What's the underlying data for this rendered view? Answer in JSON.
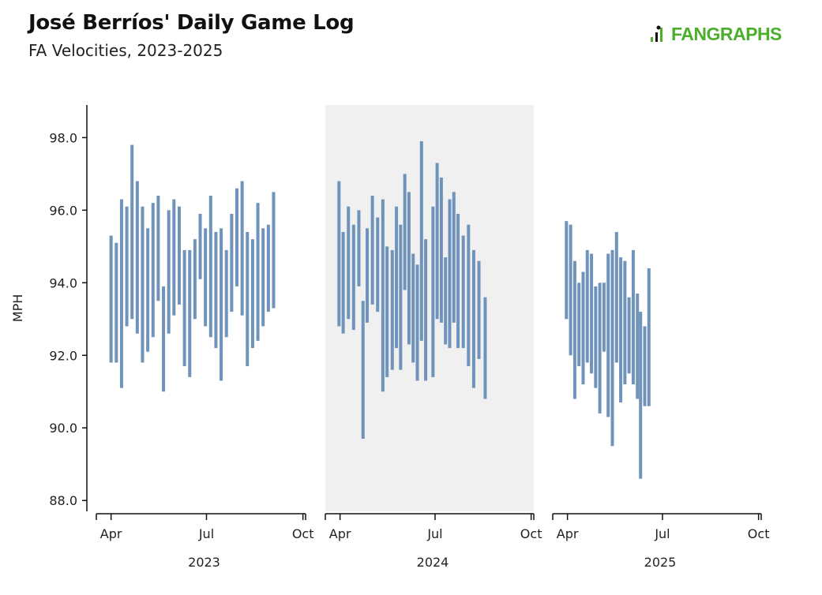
{
  "header": {
    "title": "José Berríos' Daily Game Log",
    "subtitle": "FA Velocities, 2023-2025",
    "logo_text": "FANGRAPHS"
  },
  "colors": {
    "bar": "#6f93ba",
    "shade": "#f0f0f0",
    "logo": "#4caf2a",
    "axis": "#111111"
  },
  "chart_data": {
    "type": "bar",
    "title": "José Berríos' Daily Game Log",
    "subtitle": "FA Velocities, 2023-2025",
    "ylabel": "MPH",
    "ylim": [
      87.7,
      98.9
    ],
    "yticks": [
      "88.0",
      "90.0",
      "92.0",
      "94.0",
      "96.0",
      "98.0"
    ],
    "ytick_values": [
      88,
      90,
      92,
      94,
      96,
      98
    ],
    "highlight_panel": "2024",
    "panels": [
      {
        "year": "2023",
        "month_labels": [
          "Apr",
          "Jul",
          "Oct"
        ],
        "bars": [
          {
            "day": 2,
            "min": 91.8,
            "max": 95.3
          },
          {
            "day": 7,
            "min": 91.8,
            "max": 95.1
          },
          {
            "day": 12,
            "min": 91.1,
            "max": 96.3
          },
          {
            "day": 17,
            "min": 92.8,
            "max": 96.1
          },
          {
            "day": 22,
            "min": 93.0,
            "max": 97.8
          },
          {
            "day": 27,
            "min": 92.6,
            "max": 96.8
          },
          {
            "day": 32,
            "min": 91.8,
            "max": 96.1
          },
          {
            "day": 37,
            "min": 92.1,
            "max": 95.5
          },
          {
            "day": 42,
            "min": 92.5,
            "max": 96.2
          },
          {
            "day": 47,
            "min": 93.5,
            "max": 96.4
          },
          {
            "day": 52,
            "min": 91.0,
            "max": 93.9
          },
          {
            "day": 57,
            "min": 92.6,
            "max": 96.0
          },
          {
            "day": 62,
            "min": 93.1,
            "max": 96.3
          },
          {
            "day": 67,
            "min": 93.4,
            "max": 96.1
          },
          {
            "day": 72,
            "min": 91.7,
            "max": 94.9
          },
          {
            "day": 77,
            "min": 91.4,
            "max": 94.9
          },
          {
            "day": 82,
            "min": 93.0,
            "max": 95.2
          },
          {
            "day": 87,
            "min": 94.1,
            "max": 95.9
          },
          {
            "day": 92,
            "min": 92.8,
            "max": 95.5
          },
          {
            "day": 97,
            "min": 92.5,
            "max": 96.4
          },
          {
            "day": 102,
            "min": 92.2,
            "max": 95.4
          },
          {
            "day": 107,
            "min": 91.3,
            "max": 95.5
          },
          {
            "day": 112,
            "min": 92.5,
            "max": 94.9
          },
          {
            "day": 117,
            "min": 93.2,
            "max": 95.9
          },
          {
            "day": 122,
            "min": 93.9,
            "max": 96.6
          },
          {
            "day": 127,
            "min": 93.1,
            "max": 96.8
          },
          {
            "day": 132,
            "min": 91.7,
            "max": 95.4
          },
          {
            "day": 137,
            "min": 92.2,
            "max": 95.2
          },
          {
            "day": 142,
            "min": 92.4,
            "max": 96.2
          },
          {
            "day": 147,
            "min": 92.8,
            "max": 95.5
          },
          {
            "day": 152,
            "min": 93.2,
            "max": 95.6
          },
          {
            "day": 157,
            "min": 93.3,
            "max": 96.5
          }
        ]
      },
      {
        "year": "2024",
        "month_labels": [
          "Apr",
          "Jul",
          "Oct"
        ],
        "bars": [
          {
            "day": 1,
            "min": 92.8,
            "max": 96.8
          },
          {
            "day": 5,
            "min": 92.6,
            "max": 95.4
          },
          {
            "day": 10,
            "min": 93.0,
            "max": 96.1
          },
          {
            "day": 15,
            "min": 92.7,
            "max": 95.6
          },
          {
            "day": 20,
            "min": 93.9,
            "max": 96.0
          },
          {
            "day": 24,
            "min": 89.7,
            "max": 93.5
          },
          {
            "day": 28,
            "min": 92.9,
            "max": 95.5
          },
          {
            "day": 33,
            "min": 93.4,
            "max": 96.4
          },
          {
            "day": 38,
            "min": 93.2,
            "max": 95.8
          },
          {
            "day": 43,
            "min": 91.0,
            "max": 96.3
          },
          {
            "day": 47,
            "min": 91.4,
            "max": 95.0
          },
          {
            "day": 52,
            "min": 91.6,
            "max": 94.9
          },
          {
            "day": 56,
            "min": 92.2,
            "max": 96.1
          },
          {
            "day": 60,
            "min": 91.6,
            "max": 95.6
          },
          {
            "day": 64,
            "min": 93.8,
            "max": 97.0
          },
          {
            "day": 68,
            "min": 92.3,
            "max": 96.5
          },
          {
            "day": 72,
            "min": 91.8,
            "max": 94.8
          },
          {
            "day": 76,
            "min": 91.3,
            "max": 94.5
          },
          {
            "day": 80,
            "min": 92.4,
            "max": 97.9
          },
          {
            "day": 84,
            "min": 91.3,
            "max": 95.2
          },
          {
            "day": 91,
            "min": 91.4,
            "max": 96.1
          },
          {
            "day": 95,
            "min": 93.0,
            "max": 97.3
          },
          {
            "day": 99,
            "min": 92.9,
            "max": 96.9
          },
          {
            "day": 103,
            "min": 92.3,
            "max": 94.7
          },
          {
            "day": 107,
            "min": 92.2,
            "max": 96.3
          },
          {
            "day": 111,
            "min": 92.9,
            "max": 96.5
          },
          {
            "day": 115,
            "min": 92.2,
            "max": 95.9
          },
          {
            "day": 120,
            "min": 92.2,
            "max": 95.3
          },
          {
            "day": 125,
            "min": 91.7,
            "max": 95.6
          },
          {
            "day": 130,
            "min": 91.1,
            "max": 94.9
          },
          {
            "day": 135,
            "min": 91.9,
            "max": 94.6
          },
          {
            "day": 141,
            "min": 90.8,
            "max": 93.6
          }
        ]
      },
      {
        "year": "2025",
        "month_labels": [
          "Apr",
          "Jul",
          "Oct"
        ],
        "bars": [
          {
            "day": 1,
            "min": 93.0,
            "max": 95.7
          },
          {
            "day": 5,
            "min": 92.0,
            "max": 95.6
          },
          {
            "day": 9,
            "min": 90.8,
            "max": 94.6
          },
          {
            "day": 13,
            "min": 91.7,
            "max": 94.0
          },
          {
            "day": 17,
            "min": 91.2,
            "max": 94.3
          },
          {
            "day": 21,
            "min": 91.8,
            "max": 94.9
          },
          {
            "day": 25,
            "min": 91.5,
            "max": 94.8
          },
          {
            "day": 29,
            "min": 91.1,
            "max": 93.9
          },
          {
            "day": 33,
            "min": 90.4,
            "max": 94.0
          },
          {
            "day": 37,
            "min": 92.1,
            "max": 94.0
          },
          {
            "day": 41,
            "min": 90.3,
            "max": 94.8
          },
          {
            "day": 45,
            "min": 89.5,
            "max": 94.9
          },
          {
            "day": 49,
            "min": 91.8,
            "max": 95.4
          },
          {
            "day": 53,
            "min": 90.7,
            "max": 94.7
          },
          {
            "day": 57,
            "min": 91.2,
            "max": 94.6
          },
          {
            "day": 61,
            "min": 91.5,
            "max": 93.6
          },
          {
            "day": 65,
            "min": 91.2,
            "max": 94.9
          },
          {
            "day": 69,
            "min": 90.8,
            "max": 93.7
          },
          {
            "day": 72,
            "min": 88.6,
            "max": 93.2
          },
          {
            "day": 76,
            "min": 90.6,
            "max": 92.8
          },
          {
            "day": 80,
            "min": 90.6,
            "max": 94.4
          }
        ]
      }
    ]
  }
}
